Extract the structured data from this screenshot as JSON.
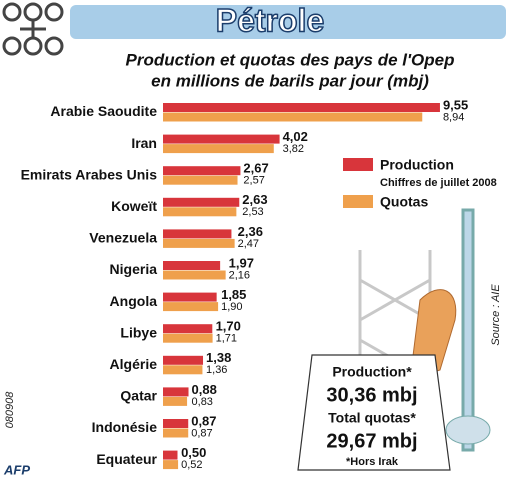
{
  "chart_data": {
    "type": "bar",
    "orientation": "horizontal",
    "title": "Pétrole",
    "subtitle": [
      "Production et quotas des pays de l'Opep",
      "en millions de barils par jour (mbj)"
    ],
    "categories": [
      "Arabie Saoudite",
      "Iran",
      "Emirats Arabes Unis",
      "Koweït",
      "Venezuela",
      "Nigeria",
      "Angola",
      "Libye",
      "Algérie",
      "Qatar",
      "Indonésie",
      "Equateur"
    ],
    "series": [
      {
        "name": "Production",
        "color": "#d8353b",
        "values": [
          9.55,
          4.02,
          2.67,
          2.63,
          2.36,
          1.97,
          1.85,
          1.7,
          1.38,
          0.88,
          0.87,
          0.5
        ],
        "value_labels": [
          "9,55",
          "4,02",
          "2,67",
          "2,63",
          "2,36",
          "1,97",
          "1,85",
          "1,70",
          "1,38",
          "0,88",
          "0,87",
          "0,50"
        ]
      },
      {
        "name": "Quotas",
        "color": "#efa04c",
        "values": [
          8.94,
          3.82,
          2.57,
          2.53,
          2.47,
          2.16,
          1.9,
          1.71,
          1.36,
          0.83,
          0.87,
          0.52
        ],
        "value_labels": [
          "8,94",
          "3,82",
          "2,57",
          "2,53",
          "2,47",
          "2,16",
          "1,90",
          "1,71",
          "1,36",
          "0,83",
          "0,87",
          "0,52"
        ]
      }
    ],
    "legend_note": "Chiffres de juillet 2008",
    "annotations": [
      "Source : AIE",
      "080908",
      "AFP"
    ],
    "summary": [
      "Production*",
      "30,36 mbj",
      "Total quotas*",
      "29,67 mbj",
      "*Hors Irak"
    ]
  }
}
